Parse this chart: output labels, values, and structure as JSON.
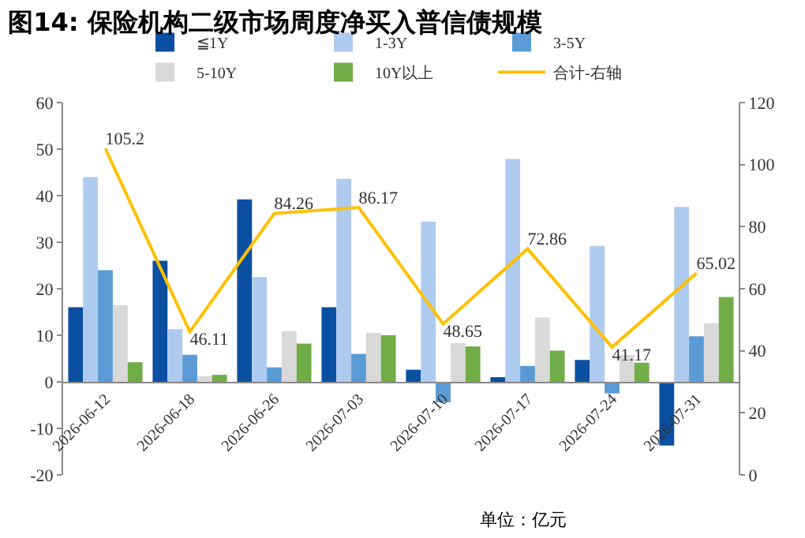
{
  "chart_data": {
    "type": "bar",
    "title": "图14: 保险机构二级市场周度净买入普信债规模",
    "categories": [
      "2026-06-12",
      "2026-06-18",
      "2026-06-26",
      "2026-07-03",
      "2026-07-10",
      "2026-07-17",
      "2026-07-24",
      "2026-07-31"
    ],
    "series": [
      {
        "name": "≦1Y",
        "color": "#0a4fa0",
        "values": [
          16,
          26,
          39.2,
          16,
          2.6,
          1.0,
          4.7,
          -13.7
        ]
      },
      {
        "name": "1-3Y",
        "color": "#aecbef",
        "values": [
          44,
          11.3,
          22.5,
          43.6,
          34.4,
          47.9,
          29.2,
          37.6
        ]
      },
      {
        "name": "3-5Y",
        "color": "#5b9bd5",
        "values": [
          24,
          5.8,
          3.1,
          6,
          -4.4,
          3.4,
          -2.5,
          9.8
        ]
      },
      {
        "name": "5-10Y",
        "color": "#d9d9d9",
        "values": [
          16.5,
          1.2,
          10.9,
          10.5,
          8.3,
          13.8,
          5.8,
          12.6
        ]
      },
      {
        "name": "10Y以上",
        "color": "#70ad47",
        "values": [
          4.2,
          1.5,
          8.2,
          10,
          7.6,
          6.7,
          4.1,
          18.2
        ]
      },
      {
        "name": "合计-右轴",
        "color": "#ffc000",
        "type": "line",
        "axis": "y2",
        "values": [
          105.2,
          46.11,
          84.26,
          86.17,
          48.65,
          72.86,
          41.17,
          65.02
        ],
        "value_labels": [
          "105.2",
          "46.11",
          "84.26",
          "86.17",
          "48.65",
          "72.86",
          "41.17",
          "65.02"
        ]
      }
    ],
    "ylim": [
      -20,
      60
    ],
    "yticks": [
      -20,
      -10,
      0,
      10,
      20,
      30,
      40,
      50,
      60
    ],
    "y2lim": [
      0,
      120
    ],
    "y2ticks": [
      0,
      20,
      40,
      60,
      80,
      100,
      120
    ],
    "legend": "top",
    "marker": "none",
    "annotations": [
      "单位：亿元"
    ]
  }
}
